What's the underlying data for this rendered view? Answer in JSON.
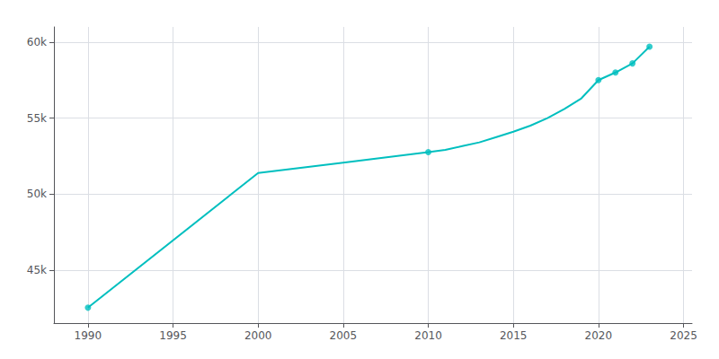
{
  "chart_data": {
    "type": "line",
    "series": [
      {
        "type": "line",
        "color": "#00BFBF",
        "marker": "none",
        "x": [
          1990,
          2000,
          2005,
          2010,
          2011,
          2012,
          2013,
          2014,
          2015,
          2016,
          2017,
          2018,
          2019,
          2020,
          2021,
          2022,
          2023
        ],
        "values": [
          42514,
          51381,
          52069,
          52757,
          52900,
          53150,
          53400,
          53750,
          54100,
          54500,
          55000,
          55600,
          56300,
          57500,
          58000,
          58600,
          59700
        ]
      },
      {
        "type": "scatter",
        "color": "#00BFBF",
        "marker": "circle",
        "x": [
          1990,
          2010,
          2020,
          2021,
          2022,
          2023
        ],
        "values": [
          42514,
          52757,
          57500,
          58000,
          58600,
          59700
        ]
      }
    ],
    "xlim": [
      1988,
      2025.5
    ],
    "xticks": [
      1990,
      1995,
      2000,
      2005,
      2010,
      2015,
      2020,
      2025
    ],
    "ylim": [
      41500,
      61000
    ],
    "yticks": [
      {
        "value": 45000,
        "label": "45k"
      },
      {
        "value": 50000,
        "label": "50k"
      },
      {
        "value": 55000,
        "label": "55k"
      },
      {
        "value": 60000,
        "label": "60k"
      }
    ],
    "grid": true
  }
}
